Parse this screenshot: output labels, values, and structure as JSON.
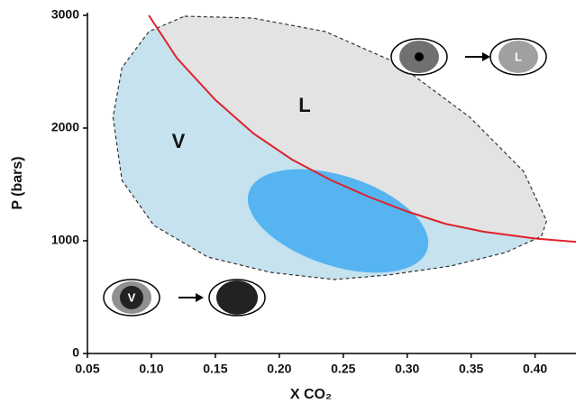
{
  "chart_data": {
    "type": "line",
    "xlabel": "X CO₂",
    "ylabel": "P (bars)",
    "xlim": [
      0.05,
      0.432
    ],
    "ylim": [
      0,
      3000
    ],
    "xticks": [
      0.05,
      {
        "value": 0.1,
        "label": "0.10"
      },
      0.15,
      {
        "value": 0.2,
        "label": "0.20"
      },
      0.25,
      {
        "value": 0.3,
        "label": "0.30"
      },
      0.35,
      {
        "value": 0.4,
        "label": "0.40"
      }
    ],
    "yticks": [
      0,
      1000,
      2000,
      3000
    ],
    "series": [
      {
        "color": "#e0202a",
        "x": [
          0.098,
          0.12,
          0.15,
          0.18,
          0.21,
          0.24,
          0.27,
          0.3,
          0.33,
          0.36,
          0.4,
          0.432
        ],
        "values": [
          3000,
          2620,
          2250,
          1950,
          1720,
          1540,
          1390,
          1260,
          1150,
          1080,
          1020,
          990
        ]
      }
    ],
    "envelope": {
      "color_above": "#e3e3e3",
      "color_below": "#c5e2ee",
      "x": [
        0.126,
        0.179,
        0.236,
        0.292,
        0.349,
        0.391,
        0.409,
        0.405,
        0.377,
        0.334,
        0.285,
        0.243,
        0.193,
        0.144,
        0.102,
        0.077,
        0.07,
        0.077,
        0.098
      ],
      "values": [
        2992,
        2976,
        2856,
        2576,
        2096,
        1616,
        1176,
        1040,
        896,
        776,
        696,
        656,
        720,
        856,
        1136,
        1536,
        2096,
        2536,
        2856
      ]
    },
    "region_labels": [
      "L",
      "V"
    ],
    "icon_labels": [
      "L",
      "V"
    ]
  }
}
